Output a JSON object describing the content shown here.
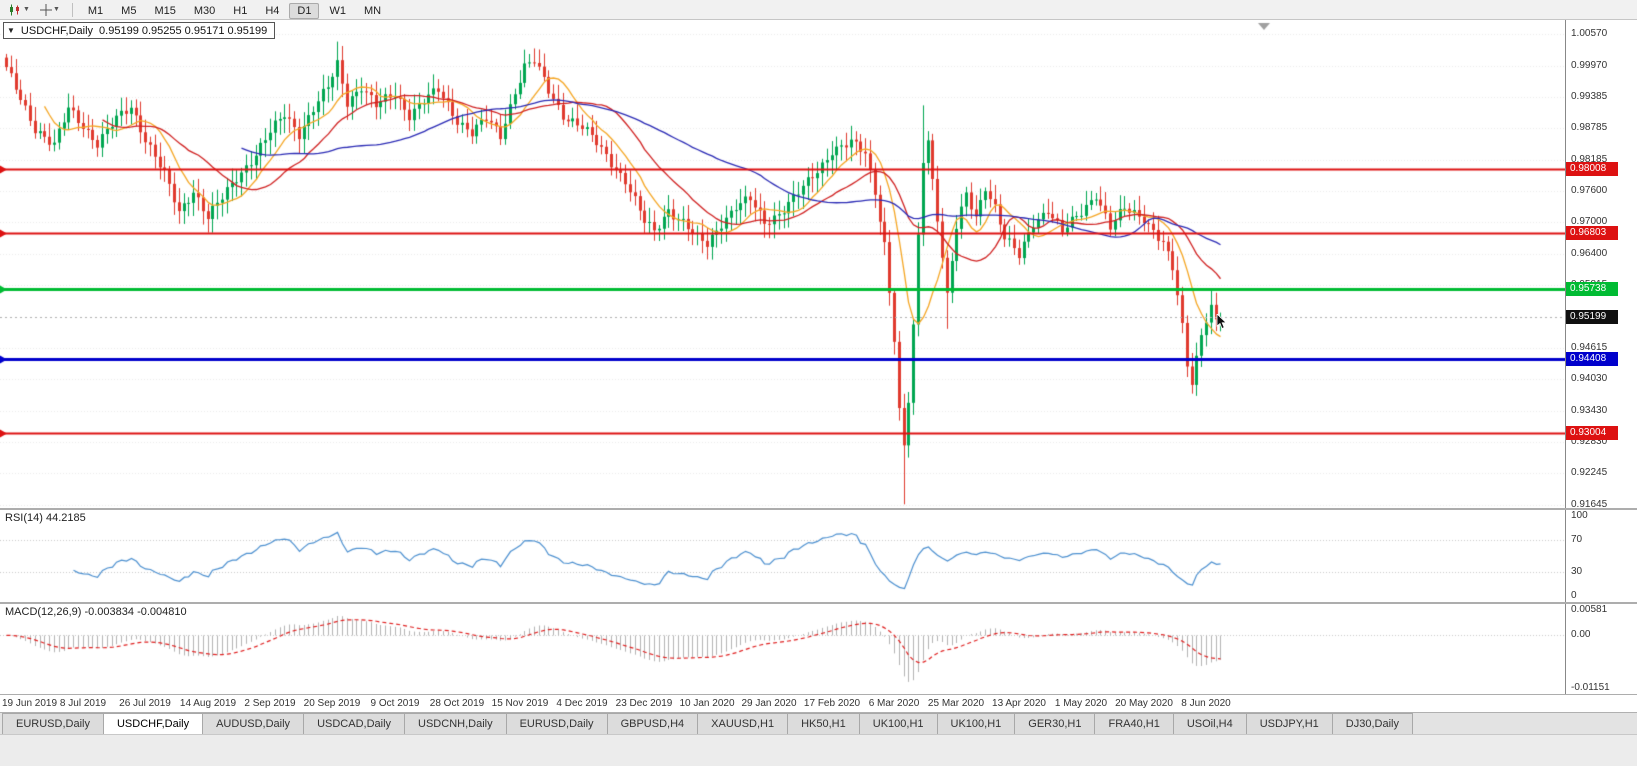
{
  "toolbar": {
    "timeframes": [
      "M1",
      "M5",
      "M15",
      "M30",
      "H1",
      "H4",
      "D1",
      "W1",
      "MN"
    ],
    "active_timeframe": "D1",
    "icons": [
      "chart-type-icon",
      "crosshair-icon"
    ]
  },
  "chart_header": {
    "symbol": "USDCHF,Daily",
    "ohlc": "0.95199 0.95255 0.95171 0.95199"
  },
  "chart_data": {
    "type": "candlestick",
    "title": "USDCHF,Daily",
    "count": 254,
    "noise": 0.0012,
    "y_range": [
      0.9158,
      1.0084
    ],
    "candle_colors": {
      "up": "#00a651",
      "down": "#e03a2e"
    },
    "close_anchors": [
      [
        0,
        0.999
      ],
      [
        3,
        0.9935
      ],
      [
        6,
        0.988
      ],
      [
        10,
        0.9845
      ],
      [
        13,
        0.9915
      ],
      [
        16,
        0.9885
      ],
      [
        19,
        0.985
      ],
      [
        23,
        0.9895
      ],
      [
        26,
        0.992
      ],
      [
        29,
        0.986
      ],
      [
        33,
        0.979
      ],
      [
        36,
        0.9718
      ],
      [
        39,
        0.9762
      ],
      [
        42,
        0.971
      ],
      [
        45,
        0.9745
      ],
      [
        48,
        0.9785
      ],
      [
        52,
        0.983
      ],
      [
        55,
        0.987
      ],
      [
        58,
        0.9905
      ],
      [
        61,
        0.987
      ],
      [
        64,
        0.9915
      ],
      [
        67,
        0.9955
      ],
      [
        69,
        1.0
      ],
      [
        71,
        0.993
      ],
      [
        74,
        0.9958
      ],
      [
        77,
        0.992
      ],
      [
        81,
        0.9945
      ],
      [
        84,
        0.9905
      ],
      [
        87,
        0.993
      ],
      [
        90,
        0.995
      ],
      [
        94,
        0.9895
      ],
      [
        97,
        0.987
      ],
      [
        100,
        0.9895
      ],
      [
        103,
        0.9865
      ],
      [
        106,
        0.995
      ],
      [
        108,
        0.9995
      ],
      [
        110,
        1.0005
      ],
      [
        113,
        0.995
      ],
      [
        116,
        0.9905
      ],
      [
        120,
        0.988
      ],
      [
        123,
        0.985
      ],
      [
        126,
        0.9815
      ],
      [
        129,
        0.978
      ],
      [
        131,
        0.974
      ],
      [
        133,
        0.97
      ],
      [
        135,
        0.9682
      ],
      [
        138,
        0.9725
      ],
      [
        141,
        0.97
      ],
      [
        144,
        0.9668
      ],
      [
        146,
        0.9658
      ],
      [
        149,
        0.97
      ],
      [
        152,
        0.973
      ],
      [
        155,
        0.9742
      ],
      [
        158,
        0.97
      ],
      [
        161,
        0.9718
      ],
      [
        164,
        0.9745
      ],
      [
        167,
        0.9775
      ],
      [
        170,
        0.981
      ],
      [
        172,
        0.9838
      ],
      [
        176,
        0.985
      ],
      [
        179,
        0.983
      ],
      [
        181,
        0.976
      ],
      [
        183,
        0.966
      ],
      [
        185,
        0.948
      ],
      [
        186,
        0.934
      ],
      [
        187,
        0.927
      ],
      [
        188,
        0.936
      ],
      [
        189,
        0.95
      ],
      [
        190,
        0.967
      ],
      [
        191,
        0.982
      ],
      [
        192,
        0.986
      ],
      [
        193,
        0.978
      ],
      [
        195,
        0.964
      ],
      [
        196,
        0.956
      ],
      [
        198,
        0.969
      ],
      [
        200,
        0.975
      ],
      [
        202,
        0.971
      ],
      [
        204,
        0.977
      ],
      [
        206,
        0.973
      ],
      [
        208,
        0.967
      ],
      [
        211,
        0.9635
      ],
      [
        214,
        0.97
      ],
      [
        217,
        0.9725
      ],
      [
        220,
        0.968
      ],
      [
        224,
        0.972
      ],
      [
        227,
        0.9755
      ],
      [
        230,
        0.969
      ],
      [
        233,
        0.9725
      ],
      [
        237,
        0.971
      ],
      [
        239,
        0.9685
      ],
      [
        241,
        0.966
      ],
      [
        243,
        0.961
      ],
      [
        244,
        0.956
      ],
      [
        245,
        0.95
      ],
      [
        246,
        0.943
      ],
      [
        247,
        0.94
      ],
      [
        248,
        0.9445
      ],
      [
        249,
        0.949
      ],
      [
        250,
        0.952
      ],
      [
        251,
        0.954
      ],
      [
        252,
        0.951
      ],
      [
        253,
        0.95199
      ]
    ],
    "wick_overrides": {
      "69": {
        "high": 1.0043
      },
      "110": {
        "high": 1.003
      },
      "187": {
        "low": 0.9165
      },
      "191": {
        "high": 0.9922
      },
      "196": {
        "low": 0.9498
      },
      "247": {
        "low": 0.9375
      },
      "253": {
        "close": 0.95199
      }
    },
    "moving_averages": [
      {
        "period": 9,
        "color": "#f5a623",
        "name": "ma-fast-orange"
      },
      {
        "period": 21,
        "color": "#d02020",
        "name": "ma-medium-red"
      },
      {
        "period": 50,
        "color": "#2a2ab5",
        "name": "ma-slow-blue"
      }
    ],
    "h_lines": [
      {
        "price": 0.98008,
        "label": "0.98008",
        "color": "#dd1111",
        "thickness": 2
      },
      {
        "price": 0.96803,
        "label": "0.96803",
        "color": "#dd1111",
        "thickness": 2
      },
      {
        "price": 0.95738,
        "label": "0.95738",
        "color": "#00bb33",
        "thickness": 3
      },
      {
        "price": 0.94408,
        "label": "0.94408",
        "color": "#0000cc",
        "thickness": 3
      },
      {
        "price": 0.93004,
        "label": "0.93004",
        "color": "#dd1111",
        "thickness": 2
      }
    ],
    "current_price": {
      "value": 0.95199,
      "label": "0.95199",
      "bg": "#101010"
    },
    "y_ticks": [
      {
        "value": 1.0057,
        "label": "1.00570"
      },
      {
        "value": 0.9997,
        "label": "0.99970"
      },
      {
        "value": 0.99385,
        "label": "0.99385"
      },
      {
        "value": 0.98785,
        "label": "0.98785"
      },
      {
        "value": 0.98185,
        "label": "0.98185"
      },
      {
        "value": 0.976,
        "label": "0.97600"
      },
      {
        "value": 0.97,
        "label": "0.97000"
      },
      {
        "value": 0.964,
        "label": "0.96400"
      },
      {
        "value": 0.95815,
        "label": "0.95815"
      },
      {
        "value": 0.94615,
        "label": "0.94615"
      },
      {
        "value": 0.9403,
        "label": "0.94030"
      },
      {
        "value": 0.9343,
        "label": "0.93430"
      },
      {
        "value": 0.9283,
        "label": "0.92830"
      },
      {
        "value": 0.92245,
        "label": "0.92245"
      },
      {
        "value": 0.91645,
        "label": "0.91645"
      }
    ],
    "x_ticks": [
      {
        "index": 3,
        "label": "19 Jun 2019"
      },
      {
        "index": 16,
        "label": "8 Jul 2019"
      },
      {
        "index": 29,
        "label": "26 Jul 2019"
      },
      {
        "index": 42,
        "label": "14 Aug 2019"
      },
      {
        "index": 55,
        "label": "2 Sep 2019"
      },
      {
        "index": 68,
        "label": "20 Sep 2019"
      },
      {
        "index": 81,
        "label": "9 Oct 2019"
      },
      {
        "index": 94,
        "label": "28 Oct 2019"
      },
      {
        "index": 107,
        "label": "15 Nov 2019"
      },
      {
        "index": 120,
        "label": "4 Dec 2019"
      },
      {
        "index": 133,
        "label": "23 Dec 2019"
      },
      {
        "index": 146,
        "label": "10 Jan 2020"
      },
      {
        "index": 159,
        "label": "29 Jan 2020"
      },
      {
        "index": 172,
        "label": "17 Feb 2020"
      },
      {
        "index": 185,
        "label": "6 Mar 2020"
      },
      {
        "index": 198,
        "label": "25 Mar 2020"
      },
      {
        "index": 211,
        "label": "13 Apr 2020"
      },
      {
        "index": 224,
        "label": "1 May 2020"
      },
      {
        "index": 237,
        "label": "20 May 2020"
      },
      {
        "index": 250,
        "label": "8 Jun 2020"
      }
    ],
    "shift_marker_x": 1264,
    "indicators": {
      "rsi": {
        "label": "RSI(14) 44.2185",
        "period": 14,
        "value": 44.2185,
        "color": "#4c90d0",
        "levels": [
          {
            "value": 100,
            "label": "100",
            "dotted": false
          },
          {
            "value": 70,
            "label": "70",
            "dotted": true
          },
          {
            "value": 30,
            "label": "30",
            "dotted": true
          },
          {
            "value": 0,
            "label": "0",
            "dotted": false
          }
        ]
      },
      "macd": {
        "label": "MACD(12,26,9) -0.003834 -0.004810",
        "fast": 12,
        "slow": 26,
        "signal": 9,
        "values": [
          -0.003834,
          -0.00481
        ],
        "histogram_color": "#b4b4b4",
        "signal_color": "#e02020",
        "range": [
          -0.0127,
          0.0068
        ],
        "axis_labels": [
          {
            "value": 0.00581,
            "label": "0.00581"
          },
          {
            "value": 0,
            "label": "0.00"
          },
          {
            "value": -0.01151,
            "label": "-0.01151"
          }
        ]
      }
    }
  },
  "bottom_tabs": {
    "items": [
      {
        "label": "EURUSD,Daily",
        "active": false
      },
      {
        "label": "USDCHF,Daily",
        "active": true
      },
      {
        "label": "AUDUSD,Daily",
        "active": false
      },
      {
        "label": "USDCAD,Daily",
        "active": false
      },
      {
        "label": "USDCNH,Daily",
        "active": false
      },
      {
        "label": "EURUSD,Daily",
        "active": false
      },
      {
        "label": "GBPUSD,H4",
        "active": false
      },
      {
        "label": "XAUUSD,H1",
        "active": false
      },
      {
        "label": "HK50,H1",
        "active": false
      },
      {
        "label": "UK100,H1",
        "active": false
      },
      {
        "label": "UK100,H1",
        "active": false
      },
      {
        "label": "GER30,H1",
        "active": false
      },
      {
        "label": "FRA40,H1",
        "active": false
      },
      {
        "label": "USOil,H4",
        "active": false
      },
      {
        "label": "USDJPY,H1",
        "active": false
      },
      {
        "label": "DJ30,Daily",
        "active": false
      }
    ]
  }
}
